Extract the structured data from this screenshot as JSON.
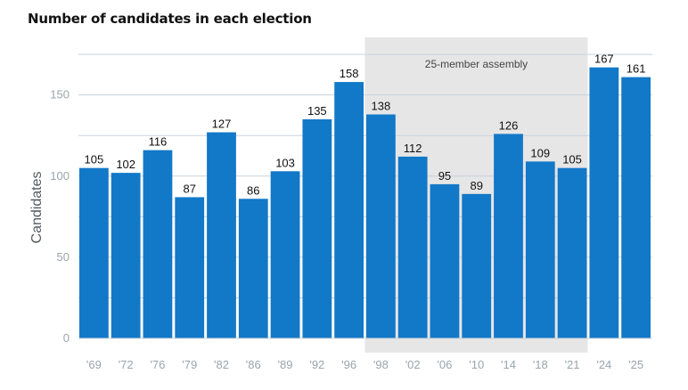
{
  "chart_data": {
    "type": "bar",
    "title": "Number of candidates in each election",
    "xlabel": "",
    "ylabel": "Candidates",
    "ylim": [
      0,
      180
    ],
    "yticks": [
      0,
      50,
      100,
      150
    ],
    "grid": true,
    "bar_color": "#1278c8",
    "shade_color": "#e6e6e6",
    "categories": [
      "'69",
      "'72",
      "'76",
      "'79",
      "'82",
      "'86",
      "'89",
      "'92",
      "'96",
      "'98",
      "'02",
      "'06",
      "'10",
      "'14",
      "'18",
      "'21",
      "'24",
      "'25"
    ],
    "values": [
      105,
      102,
      116,
      87,
      127,
      86,
      103,
      135,
      158,
      138,
      112,
      95,
      89,
      126,
      109,
      105,
      167,
      161
    ],
    "annotation": {
      "label": "25-member assembly",
      "from_category": "'98",
      "to_category": "'21"
    }
  }
}
